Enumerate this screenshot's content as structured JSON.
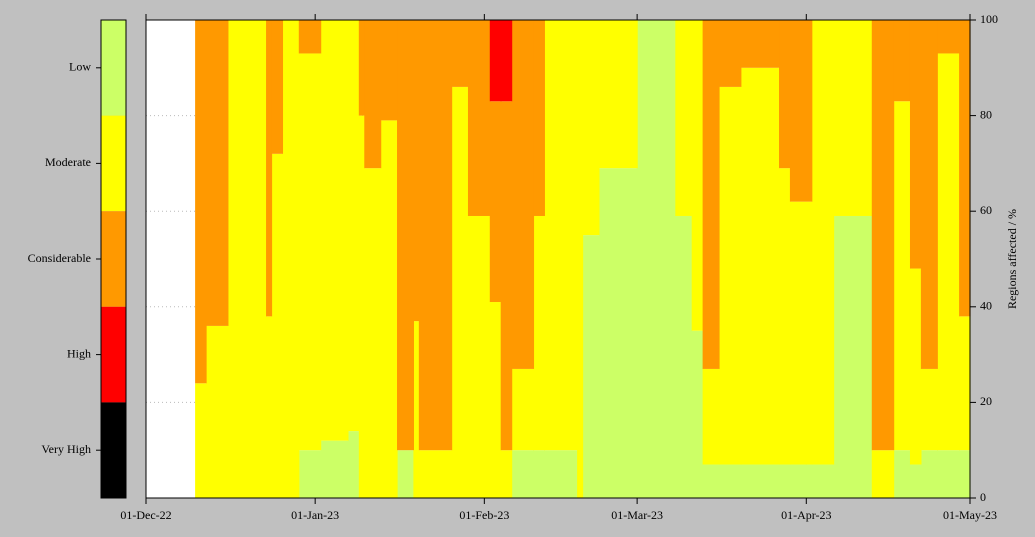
{
  "chart_data": {
    "type": "stacked_step_area",
    "ylabel": "Regions affected / %",
    "y_axis_side": "right",
    "xlim": [
      0,
      151
    ],
    "xticks": [
      {
        "value": 0,
        "label": "01-Dec-22"
      },
      {
        "value": 31,
        "label": "01-Jan-23"
      },
      {
        "value": 62,
        "label": "01-Feb-23"
      },
      {
        "value": 90,
        "label": "01-Mar-23"
      },
      {
        "value": 121,
        "label": "01-Apr-23"
      },
      {
        "value": 151,
        "label": "01-May-23"
      }
    ],
    "ylim": [
      0,
      100
    ],
    "yticks": [
      0,
      20,
      40,
      60,
      80,
      100
    ],
    "grid": true,
    "x": [
      0,
      9,
      11,
      15,
      22,
      23,
      25,
      28,
      32,
      37,
      39,
      40,
      43,
      46,
      49,
      50,
      56,
      59,
      63,
      65,
      67,
      71,
      73,
      79,
      80,
      83,
      90,
      97,
      100,
      102,
      105,
      109,
      116,
      118,
      122,
      126,
      133,
      137,
      140,
      142,
      145,
      149
    ],
    "series": [
      {
        "name": "Low",
        "color": "#ccff66",
        "values": [
          null,
          0,
          0,
          0,
          0,
          0,
          0,
          10,
          12,
          14,
          0,
          0,
          0,
          10,
          0,
          0,
          0,
          0,
          0,
          0,
          10,
          10,
          10,
          0,
          55,
          69,
          100,
          59,
          35,
          7,
          7,
          7,
          7,
          7,
          7,
          59,
          0,
          10,
          7,
          10,
          10,
          10
        ]
      },
      {
        "name": "Moderate",
        "color": "#ffff00",
        "values": [
          null,
          24,
          36,
          100,
          38,
          72,
          100,
          83,
          88,
          86,
          80,
          69,
          79,
          0,
          37,
          10,
          86,
          59,
          41,
          10,
          17,
          49,
          90,
          100,
          45,
          31,
          0,
          41,
          65,
          20,
          79,
          83,
          62,
          55,
          93,
          41,
          10,
          73,
          41,
          17,
          83,
          28
        ]
      },
      {
        "name": "Considerable",
        "color": "#ff9900",
        "values": [
          null,
          76,
          64,
          0,
          62,
          28,
          0,
          7,
          0,
          0,
          20,
          31,
          21,
          90,
          63,
          90,
          14,
          41,
          42,
          73,
          73,
          41,
          0,
          0,
          0,
          0,
          0,
          0,
          0,
          73,
          14,
          10,
          31,
          38,
          0,
          0,
          90,
          17,
          52,
          73,
          7,
          62
        ]
      },
      {
        "name": "High",
        "color": "#ff0000",
        "values": [
          null,
          0,
          0,
          0,
          0,
          0,
          0,
          0,
          0,
          0,
          0,
          0,
          0,
          0,
          0,
          0,
          0,
          0,
          17,
          17,
          0,
          0,
          0,
          0,
          0,
          0,
          0,
          0,
          0,
          0,
          0,
          0,
          0,
          0,
          0,
          0,
          0,
          0,
          0,
          0,
          0,
          0
        ]
      },
      {
        "name": "Very High",
        "color": "#000000",
        "values": [
          null,
          0,
          0,
          0,
          0,
          0,
          0,
          0,
          0,
          0,
          0,
          0,
          0,
          0,
          0,
          0,
          0,
          0,
          0,
          0,
          0,
          0,
          0,
          0,
          0,
          0,
          0,
          0,
          0,
          0,
          0,
          0,
          0,
          0,
          0,
          0,
          0,
          0,
          0,
          0,
          0,
          0
        ]
      }
    ]
  }
}
